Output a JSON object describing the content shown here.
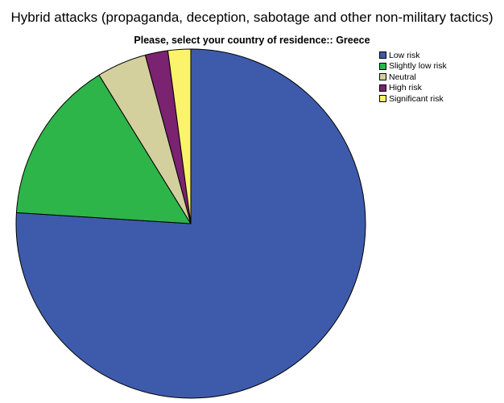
{
  "chart_data": {
    "type": "pie",
    "title": "Hybrid attacks (propaganda, deception, sabotage and other non-military tactics)",
    "subtitle": "Please, select your country of residence:: Greece",
    "legend_position": "top-right",
    "slices": [
      {
        "label": "Low risk",
        "value": 76.0,
        "color": "#3e5bab"
      },
      {
        "label": "Slightly low risk",
        "value": 15.2,
        "color": "#2db54a"
      },
      {
        "label": "Neutral",
        "value": 4.6,
        "color": "#d4d09e"
      },
      {
        "label": "High risk",
        "value": 2.1,
        "color": "#7b2270"
      },
      {
        "label": "Significant risk",
        "value": 2.1,
        "color": "#fcf36c"
      }
    ]
  }
}
